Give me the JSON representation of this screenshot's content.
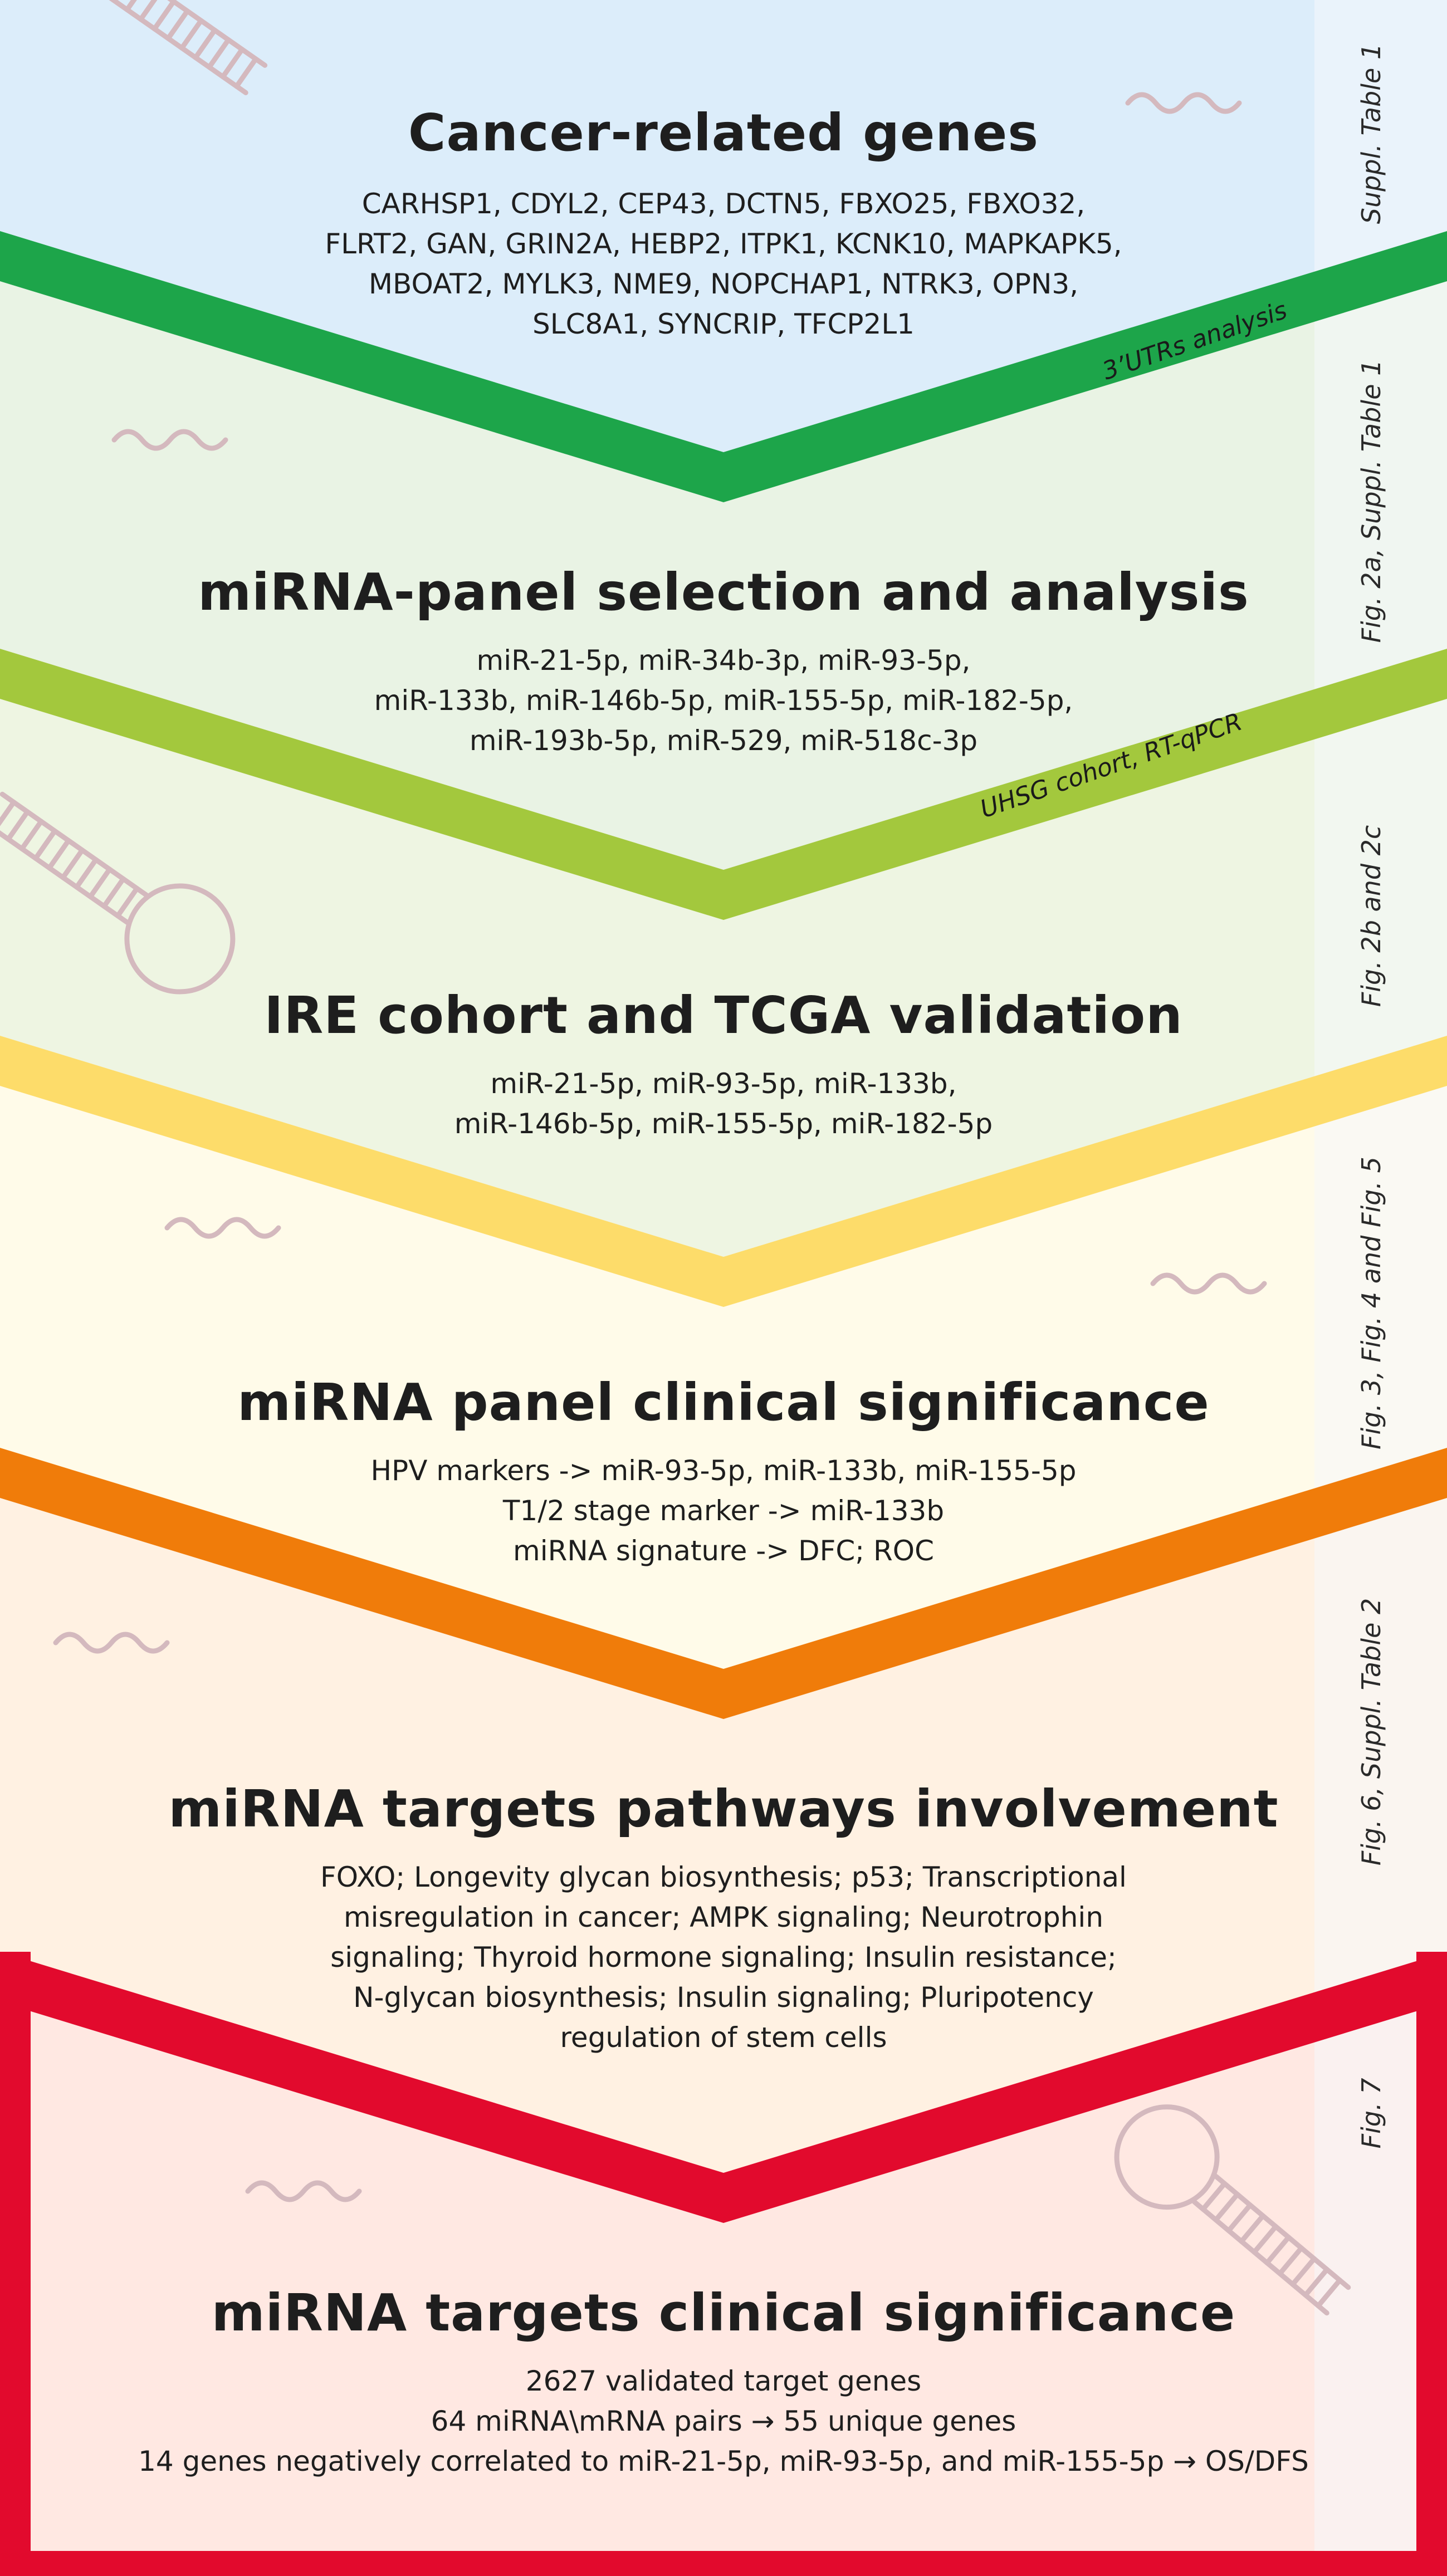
{
  "colors": {
    "stage_backgrounds": [
      "#dcedfa",
      "#e9f3e4",
      "#eef5e2",
      "#fffbe9",
      "#fff1e2",
      "#ffe8e2"
    ],
    "chevrons": [
      "#1da54a",
      "#a3c83d",
      "#fddc6a",
      "#f07c0a",
      "#e20a2d"
    ],
    "side_strip": "#f6f8fb",
    "decoration": "#d4b9be",
    "text": "#1e1e1e"
  },
  "stages": [
    {
      "title": "Cancer-related genes",
      "lines": [
        "CARHSP1, CDYL2, CEP43, DCTN5, FBXO25, FBXO32,",
        "FLRT2, GAN, GRIN2A, HEBP2, ITPK1, KCNK10, MAPKAPK5,",
        "MBOAT2, MYLK3, NME9, NOPCHAP1, NTRK3, OPN3,",
        "SLC8A1, SYNCRIP, TFCP2L1"
      ],
      "side_label": "Suppl. Table 1"
    },
    {
      "title": "miRNA-panel selection and analysis",
      "lines": [
        "miR-21-5p, miR-34b-3p, miR-93-5p,",
        "miR-133b, miR-146b-5p, miR-155-5p, miR-182-5p,",
        "miR-193b-5p, miR-529, miR-518c-3p"
      ],
      "side_label": "Fig. 2a, Suppl. Table 1"
    },
    {
      "title": "IRE cohort and TCGA validation",
      "lines": [
        "miR-21-5p, miR-93-5p, miR-133b,",
        "miR-146b-5p, miR-155-5p, miR-182-5p"
      ],
      "side_label": "Fig. 2b and 2c"
    },
    {
      "title": "miRNA panel clinical significance",
      "lines": [
        "HPV markers -> miR-93-5p, miR-133b, miR-155-5p",
        "T1/2 stage marker -> miR-133b",
        "miRNA signature -> DFC; ROC"
      ],
      "side_label": "Fig. 3, Fig. 4 and Fig. 5"
    },
    {
      "title": "miRNA targets pathways involvement",
      "lines": [
        "FOXO; Longevity glycan biosynthesis; p53; Transcriptional",
        "misregulation in cancer; AMPK signaling; Neurotrophin",
        "signaling; Thyroid hormone signaling; Insulin resistance;",
        "N-glycan biosynthesis; Insulin signaling; Pluripotency",
        "regulation of stem cells"
      ],
      "side_label": "Fig. 6, Suppl. Table 2"
    },
    {
      "title": "miRNA targets clinical significance",
      "lines": [
        "2627 validated target genes",
        "64 miRNA\\mRNA pairs → 55 unique genes",
        "14 genes negatively correlated to miR-21-5p, miR-93-5p, and miR-155-5p → OS/DFS"
      ],
      "side_label": "Fig. 7"
    }
  ],
  "band_labels": {
    "utr": "3’UTRs analysis",
    "uhsg": "UHSG cohort, RT-qPCR"
  },
  "icons": [
    "hairpin-icon",
    "squiggle-icon"
  ]
}
